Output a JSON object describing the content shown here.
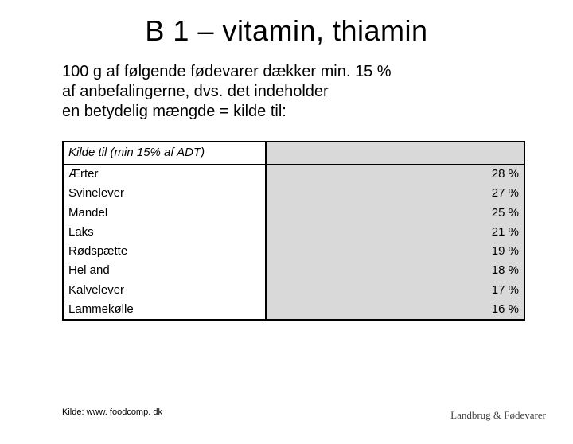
{
  "title": "B 1 – vitamin, thiamin",
  "intro_line1": "100 g af følgende fødevarer dækker min. 15 %",
  "intro_line2": "af anbefalingerne, dvs. det indeholder",
  "intro_line3": "en betydelig mængde = kilde til:",
  "table": {
    "header_left": "Kilde til (min 15% af ADT)",
    "header_right": "",
    "columns": [
      "name",
      "value"
    ],
    "col_widths_pct": [
      44,
      56
    ],
    "border_color": "#000000",
    "shade_color": "#d9d9d9",
    "background_color": "#ffffff",
    "font_size_pt": 11,
    "rows": [
      {
        "name": "Ærter",
        "value": "28 %"
      },
      {
        "name": "Svinelever",
        "value": "27 %"
      },
      {
        "name": "Mandel",
        "value": "25 %"
      },
      {
        "name": "Laks",
        "value": "21 %"
      },
      {
        "name": "Rødspætte",
        "value": "19 %"
      },
      {
        "name": "Hel and",
        "value": "18 %"
      },
      {
        "name": "Kalvelever",
        "value": "17 %"
      },
      {
        "name": "Lammekølle",
        "value": "16 %"
      }
    ]
  },
  "footer_left": "Kilde: www. foodcomp. dk",
  "footer_right": "Landbrug & Fødevarer"
}
